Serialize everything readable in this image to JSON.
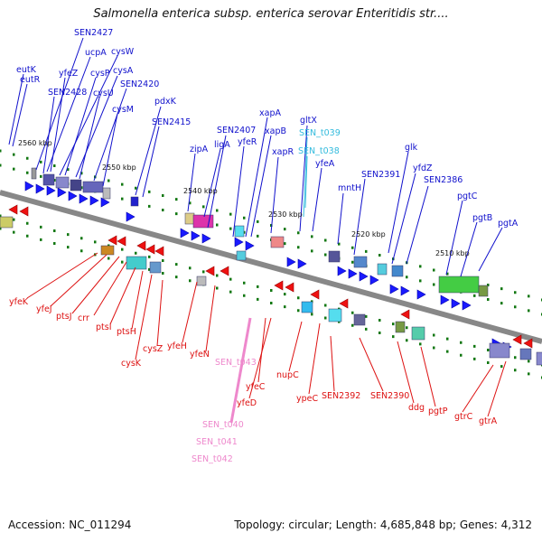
{
  "title": "Salmonella enterica subsp. enterica serovar Enteritidis str....",
  "footer": {
    "accession": "Accession: NC_011294",
    "topology": "Topology: circular; Length: 4,685,848 bp; Genes: 4,312"
  },
  "colors": {
    "top_label": "#1010cc",
    "bottom_label": "#dd1111",
    "rna_label": "#33bbdd",
    "pseudo_label": "#ee88cc",
    "backbone": "#888888",
    "tick": "#117711"
  },
  "ticks": [
    "2560 kbp",
    "2550 kbp",
    "2540 kbp",
    "2530 kbp",
    "2520 kbp",
    "2510 kbp"
  ],
  "top_labels": [
    "eutK",
    "eutR",
    "SEN2427",
    "ucpA",
    "cysW",
    "yfeZ",
    "cysP",
    "cysA",
    "SEN2428",
    "cysU",
    "SEN2420",
    "cysM",
    "pdxK",
    "SEN2415",
    "xapA",
    "SEN2407",
    "ligA",
    "yfeR",
    "xapB",
    "zipA",
    "xapR",
    "mntH",
    "glk",
    "SEN2391",
    "yfdZ",
    "SEN2386",
    "pgtC",
    "pgtB",
    "pgtA"
  ],
  "rna_labels": [
    "gltX",
    "SEN_t039",
    "SEN_t038",
    "yfeA"
  ],
  "bottom_labels": [
    "yfeK",
    "yfeJ",
    "ptsJ",
    "crr",
    "ptsI",
    "ptsH",
    "cysK",
    "cysZ",
    "yfeH",
    "yfeN",
    "yfeC",
    "yfeD",
    "nupC",
    "ypeC",
    "SEN2392",
    "SEN2390",
    "ddg",
    "pgtP",
    "gtrC",
    "gtrA"
  ],
  "pseudo_labels": [
    "SEN_t043",
    "SEN_t040",
    "SEN_t041",
    "SEN_t042"
  ]
}
